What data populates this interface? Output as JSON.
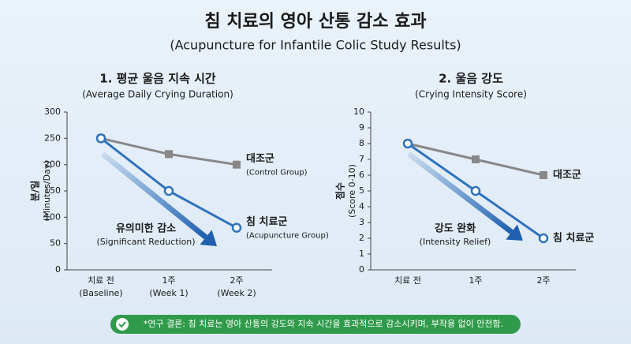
{
  "title": "침 치료의 영아 산통 감소 효과",
  "subtitle": "(Acupuncture for Infantile Colic Study Results)",
  "conclusion": "*연구 결론: 침 치료는 영아 산통의 강도와 지속 시간을 효과적으로 감소시키며, 부작용 없이 안전함.",
  "chart_data": [
    {
      "type": "line",
      "title": "1. 평균 울음 지속 시간",
      "subtitle": "(Average Daily Crying Duration)",
      "y_label": "분/일",
      "y_label_sub": "(Minutes/Day)",
      "categories": [
        "치료 전",
        "1주",
        "2주"
      ],
      "category_subs": [
        "(Baseline)",
        "(Week 1)",
        "(Week 2)"
      ],
      "series": [
        {
          "name": "대조군",
          "label_sub": "(Control Group)",
          "color": "#888888",
          "marker": "square",
          "values": [
            250,
            220,
            200
          ]
        },
        {
          "name": "침 치료군",
          "label_sub": "(Acupuncture Group)",
          "color": "#2f72bd",
          "marker": "circle",
          "values": [
            250,
            150,
            80
          ]
        }
      ],
      "annotation": "유의미한 감소",
      "annotation_sub": "(Significant Reduction)",
      "ylim": [
        0,
        300
      ],
      "yticks": [
        0,
        50,
        100,
        150,
        200,
        250,
        300
      ],
      "grid": false
    },
    {
      "type": "line",
      "title": "2. 울음 강도",
      "subtitle": "(Crying Intensity Score)",
      "y_label": "점수",
      "y_label_sub": "(Score 0-10)",
      "categories": [
        "치료 전",
        "1주",
        "2주"
      ],
      "series": [
        {
          "name": "대조군",
          "color": "#888888",
          "marker": "square",
          "values": [
            8,
            7,
            6
          ]
        },
        {
          "name": "침 치료군",
          "color": "#2f72bd",
          "marker": "circle",
          "values": [
            8,
            5,
            2
          ]
        }
      ],
      "annotation": "강도 완화",
      "annotation_sub": "(Intensity Relief)",
      "ylim": [
        0,
        10
      ],
      "yticks": [
        0,
        1,
        2,
        3,
        4,
        5,
        6,
        7,
        8,
        9,
        10
      ],
      "grid": false
    }
  ]
}
